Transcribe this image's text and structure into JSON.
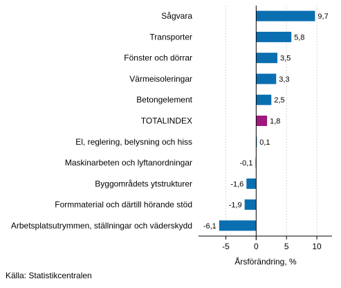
{
  "chart_data": {
    "type": "bar",
    "orientation": "horizontal",
    "categories": [
      "Sågvara",
      "Transporter",
      "Fönster och dörrar",
      "Värmeisoleringar",
      "Betongelement",
      "TOTALINDEX",
      "El, reglering, belysning och hiss",
      "Maskinarbeten och lyftanordningar",
      "Byggområdets ytstrukturer",
      "Formmaterial och därtill hörande stöd",
      "Arbetsplatsutrymmen, ställningar och väderskydd"
    ],
    "values": [
      9.7,
      5.8,
      3.5,
      3.3,
      2.5,
      1.8,
      0.1,
      -0.1,
      -1.6,
      -1.9,
      -6.1
    ],
    "value_labels": [
      "9,7",
      "5,8",
      "3,5",
      "3,3",
      "2,5",
      "1,8",
      "0,1",
      "-0,1",
      "-1,6",
      "-1,9",
      "-6,1"
    ],
    "highlight_category": "TOTALINDEX",
    "xlabel": "Årsförändring, %",
    "xlim": [
      -9.5,
      12.5
    ],
    "xticks": [
      -5,
      0,
      5,
      10
    ],
    "xtick_labels": [
      "-5",
      "0",
      "5",
      "10"
    ],
    "grid": true,
    "colors": {
      "bar": "#0a6fb0",
      "highlight": "#a0177d",
      "grid": "#d9d9d9",
      "axis": "#000000"
    }
  },
  "source": "Källa: Statistikcentralen"
}
